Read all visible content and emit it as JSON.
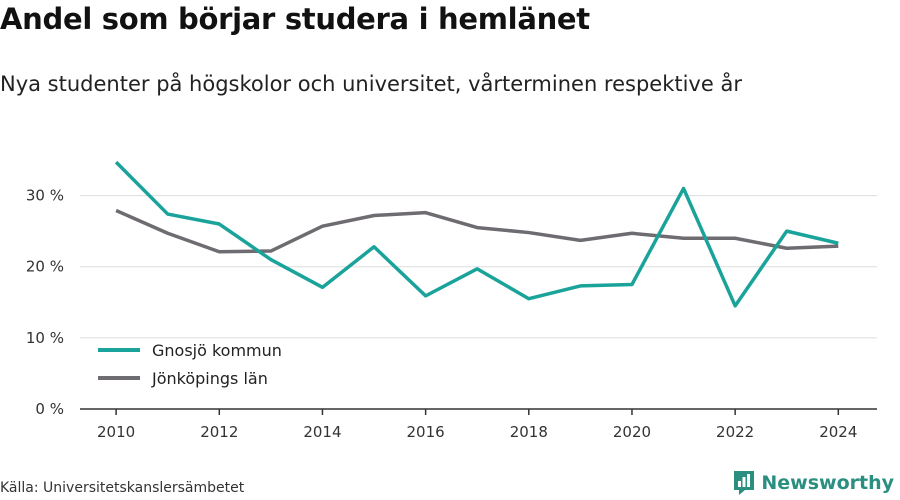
{
  "header": {
    "title": "Andel som börjar studera i hemlänet",
    "subtitle": "Nya studenter på högskolor och universitet, vårterminen respektive år"
  },
  "footer": {
    "source": "Källa: Universitetskanslersämbetet",
    "brand": "Newsworthy"
  },
  "colors": {
    "gnosjo": "#1aa39a",
    "jonkoping": "#6e6b71",
    "grid": "#dddddd",
    "axis": "#333333",
    "brand": "#2a8f80"
  },
  "chart_data": {
    "type": "line",
    "title": "Andel som börjar studera i hemlänet",
    "subtitle": "Nya studenter på högskolor och universitet, vårterminen respektive år",
    "x": [
      2010,
      2011,
      2012,
      2013,
      2014,
      2015,
      2016,
      2017,
      2018,
      2019,
      2020,
      2021,
      2022,
      2023,
      2024
    ],
    "x_ticks": [
      2010,
      2012,
      2014,
      2016,
      2018,
      2020,
      2022,
      2024
    ],
    "y_ticks": [
      0,
      10,
      20,
      30
    ],
    "y_tick_labels": [
      "0 %",
      "10 %",
      "20 %",
      "30 %"
    ],
    "ylim": [
      0,
      35
    ],
    "grid": "horizontal",
    "legend_position": "bottom-left",
    "series": [
      {
        "name": "Gnosjö kommun",
        "color": "#1aa39a",
        "values": [
          34.7,
          27.4,
          26.0,
          21.0,
          17.1,
          22.8,
          15.9,
          19.7,
          15.5,
          17.3,
          17.5,
          31.0,
          14.5,
          25.0,
          23.3
        ]
      },
      {
        "name": "Jönköpings län",
        "color": "#6e6b71",
        "values": [
          27.9,
          24.7,
          22.1,
          22.2,
          25.7,
          27.2,
          27.6,
          25.5,
          24.8,
          23.7,
          24.7,
          24.0,
          24.0,
          22.6,
          22.9
        ]
      }
    ]
  }
}
